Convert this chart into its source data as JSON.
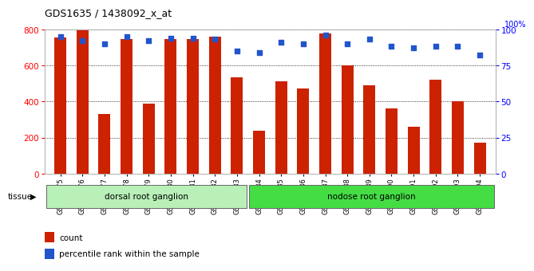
{
  "title": "GDS1635 / 1438092_x_at",
  "categories": [
    "GSM63675",
    "GSM63676",
    "GSM63677",
    "GSM63678",
    "GSM63679",
    "GSM63680",
    "GSM63681",
    "GSM63682",
    "GSM63683",
    "GSM63684",
    "GSM63685",
    "GSM63686",
    "GSM63687",
    "GSM63688",
    "GSM63689",
    "GSM63690",
    "GSM63691",
    "GSM63692",
    "GSM63693",
    "GSM63694"
  ],
  "counts": [
    755,
    800,
    330,
    745,
    390,
    745,
    745,
    760,
    535,
    240,
    510,
    470,
    775,
    600,
    490,
    360,
    260,
    520,
    400,
    170
  ],
  "percentiles": [
    95,
    92,
    90,
    95,
    92,
    94,
    94,
    93,
    85,
    84,
    91,
    90,
    96,
    90,
    93,
    88,
    87,
    88,
    88,
    82
  ],
  "bar_color": "#cc2200",
  "dot_color": "#2255cc",
  "ylim_left": [
    0,
    800
  ],
  "ylim_right": [
    0,
    100
  ],
  "yticks_left": [
    0,
    200,
    400,
    600,
    800
  ],
  "yticks_right": [
    0,
    25,
    50,
    75,
    100
  ],
  "tissue_groups": [
    {
      "label": "dorsal root ganglion",
      "start": 0,
      "end": 9,
      "color": "#b8f0b8"
    },
    {
      "label": "nodose root ganglion",
      "start": 9,
      "end": 20,
      "color": "#44dd44"
    }
  ],
  "background_color": "#ffffff",
  "plot_bg_color": "#ffffff",
  "grid_color": "#000000",
  "tissue_label": "tissue",
  "figsize": [
    6.6,
    3.45
  ],
  "dpi": 100
}
